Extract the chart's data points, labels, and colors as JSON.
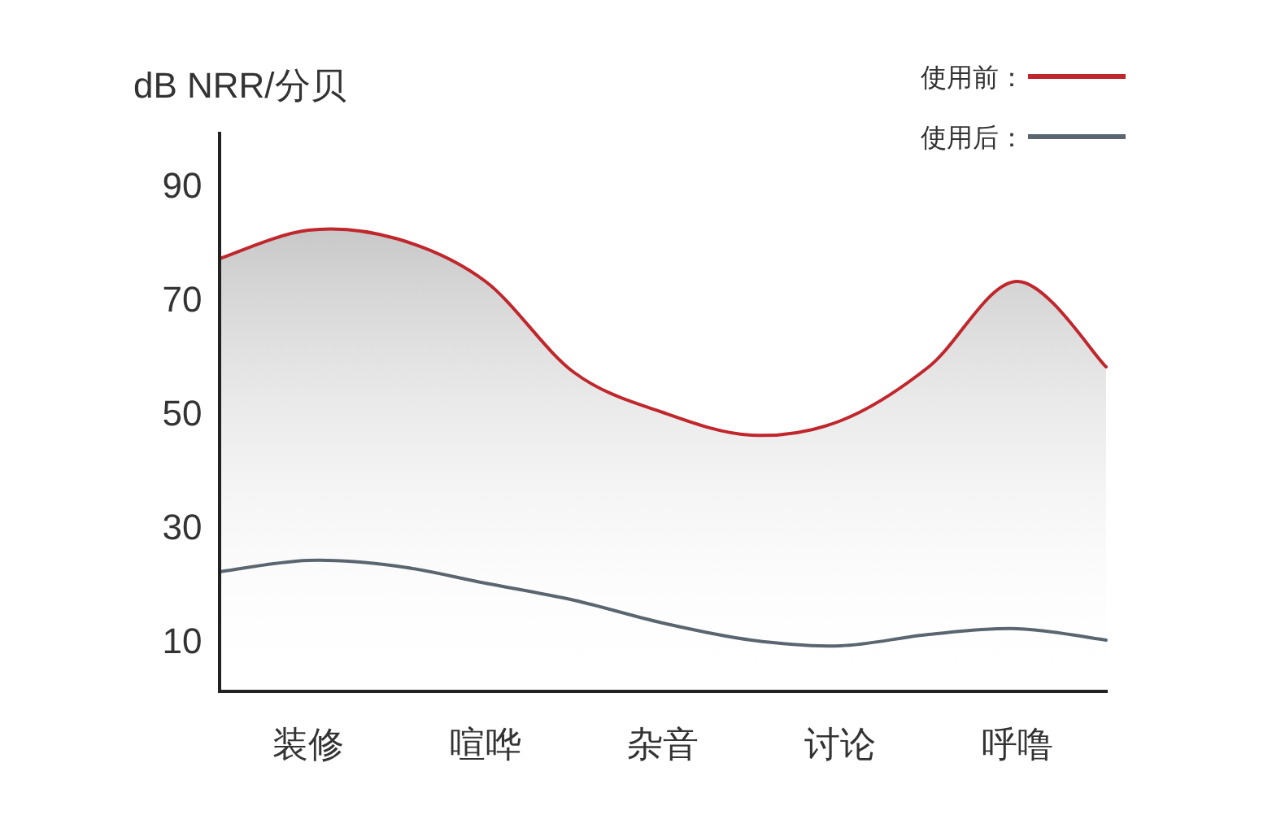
{
  "chart_data": {
    "type": "line",
    "ylabel": "dB NRR/分贝",
    "ylim": [
      1,
      99
    ],
    "categories": [
      null,
      "装修",
      null,
      "喧哗",
      null,
      "杂音",
      null,
      "讨论",
      null,
      "呼噜",
      null
    ],
    "yticks": [
      10,
      30,
      50,
      70,
      90
    ],
    "legend": "top right",
    "series": [
      {
        "name": "使用前：",
        "type": "area",
        "color": "#c0272d",
        "values": [
          77,
          82,
          80.5,
          73,
          57,
          50,
          46,
          48.5,
          58,
          73,
          58
        ]
      },
      {
        "name": "使用后：",
        "color": "#5a6570",
        "values": [
          22,
          24,
          23,
          20,
          17,
          13,
          10,
          9,
          11,
          12,
          10
        ]
      }
    ]
  }
}
